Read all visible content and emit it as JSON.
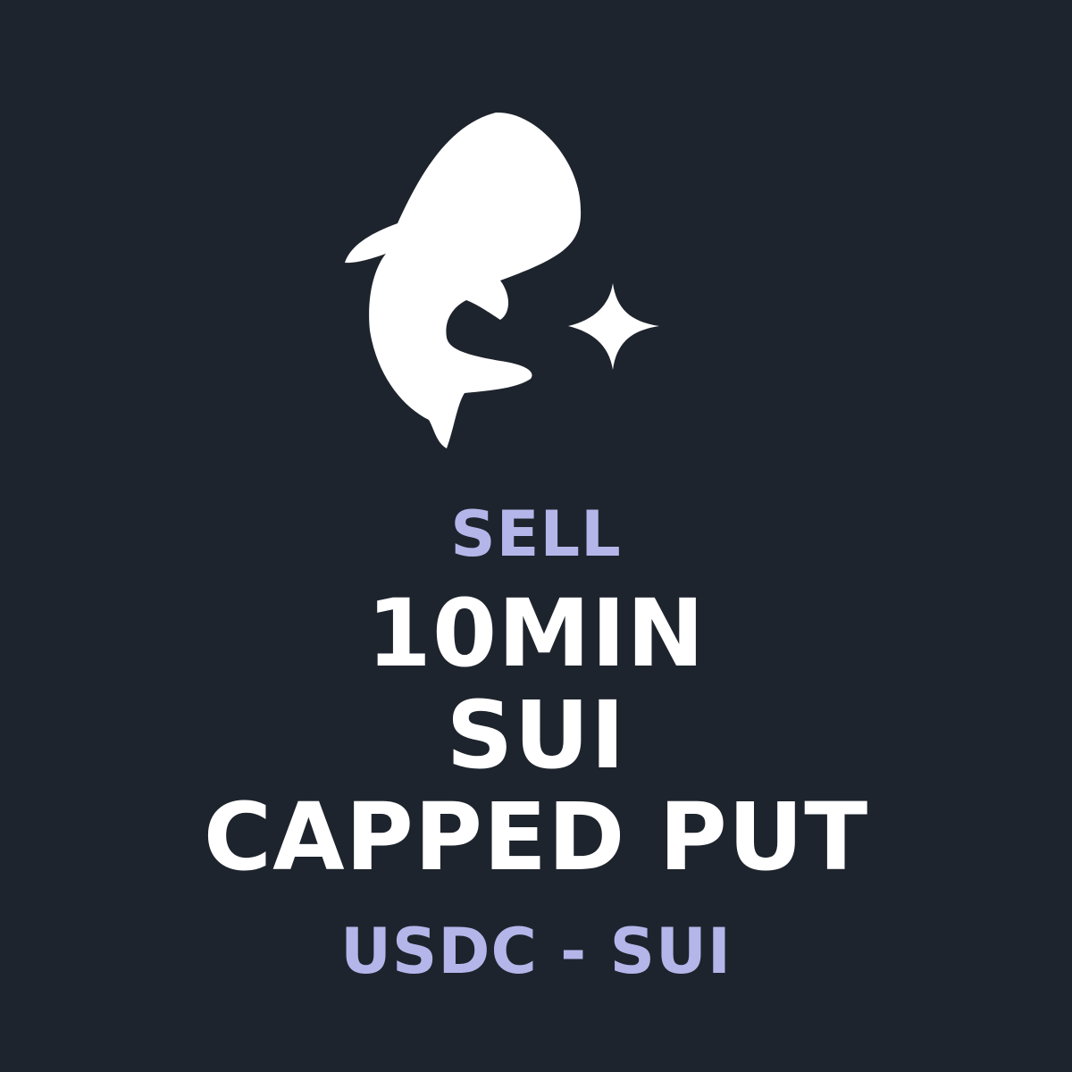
{
  "logo": {
    "icon": "whale-shark-icon",
    "sparkle_icon": "sparkle-icon",
    "color": "#ffffff"
  },
  "colors": {
    "background": "#1e242d",
    "accent": "#b4b6ea",
    "primary_text": "#ffffff"
  },
  "card": {
    "action": "SELL",
    "duration": "10MIN",
    "asset": "SUI",
    "product": "CAPPED PUT",
    "pair": "USDC - SUI"
  }
}
